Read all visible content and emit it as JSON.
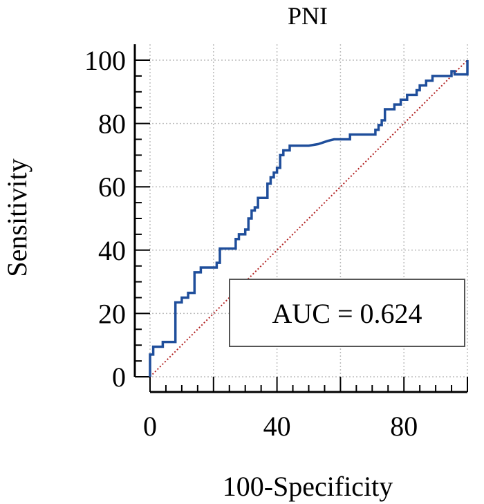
{
  "chart_data": {
    "type": "line",
    "title": "PNI",
    "xlabel": "100-Specificity",
    "ylabel": "Sensitivity",
    "xlim": [
      0,
      100
    ],
    "ylim": [
      0,
      100
    ],
    "x_ticks": [
      "0",
      "40",
      "80"
    ],
    "y_ticks": [
      "0",
      "20",
      "40",
      "60",
      "80",
      "100"
    ],
    "grid": true,
    "annotation": "AUC = 0.624",
    "series": [
      {
        "color": "#1f4e9b",
        "points": [
          [
            0,
            0
          ],
          [
            0,
            7
          ],
          [
            1,
            7
          ],
          [
            1,
            9.5
          ],
          [
            4,
            9.5
          ],
          [
            4,
            11
          ],
          [
            8,
            11
          ],
          [
            8,
            23.5
          ],
          [
            10,
            23.5
          ],
          [
            10,
            25
          ],
          [
            12,
            25
          ],
          [
            12,
            26.5
          ],
          [
            14,
            26.5
          ],
          [
            14,
            33
          ],
          [
            16,
            33
          ],
          [
            16,
            34.5
          ],
          [
            21,
            34.5
          ],
          [
            21,
            36
          ],
          [
            22,
            36
          ],
          [
            22,
            40.5
          ],
          [
            27,
            40.5
          ],
          [
            27,
            43.5
          ],
          [
            28,
            43.5
          ],
          [
            28,
            45
          ],
          [
            30,
            45
          ],
          [
            30,
            46.5
          ],
          [
            31,
            46.5
          ],
          [
            31,
            50
          ],
          [
            32,
            50
          ],
          [
            32,
            52.5
          ],
          [
            33,
            52.5
          ],
          [
            33,
            53.5
          ],
          [
            34,
            53.5
          ],
          [
            34,
            56.5
          ],
          [
            37,
            56.5
          ],
          [
            37,
            61
          ],
          [
            38,
            61
          ],
          [
            38,
            63
          ],
          [
            39,
            63
          ],
          [
            39,
            64.5
          ],
          [
            40,
            64.5
          ],
          [
            40,
            66
          ],
          [
            41,
            66
          ],
          [
            41,
            70
          ],
          [
            42,
            70
          ],
          [
            42,
            71.5
          ],
          [
            44,
            71.5
          ],
          [
            44,
            73
          ],
          [
            50,
            73
          ],
          [
            53,
            73.5
          ],
          [
            56,
            74.5
          ],
          [
            58,
            75
          ],
          [
            63,
            75
          ],
          [
            63,
            76.5
          ],
          [
            71,
            76.5
          ],
          [
            71,
            78
          ],
          [
            72,
            78
          ],
          [
            72,
            79.5
          ],
          [
            73,
            79.5
          ],
          [
            73,
            81
          ],
          [
            74,
            81
          ],
          [
            74,
            84.5
          ],
          [
            77,
            84.5
          ],
          [
            77,
            86
          ],
          [
            79,
            86
          ],
          [
            79,
            87.5
          ],
          [
            81,
            87.5
          ],
          [
            81,
            89
          ],
          [
            84,
            89
          ],
          [
            84,
            90.5
          ],
          [
            85,
            90.5
          ],
          [
            85,
            92
          ],
          [
            87,
            92
          ],
          [
            87,
            93.5
          ],
          [
            89,
            93.5
          ],
          [
            89,
            95
          ],
          [
            95,
            95
          ],
          [
            95,
            96.5
          ],
          [
            96,
            96.5
          ],
          [
            96,
            95.5
          ],
          [
            100,
            95.5
          ],
          [
            100,
            100
          ]
        ]
      },
      {
        "color": "#b22222",
        "style": "dotted",
        "points": [
          [
            0,
            0
          ],
          [
            100,
            100
          ]
        ]
      }
    ]
  }
}
